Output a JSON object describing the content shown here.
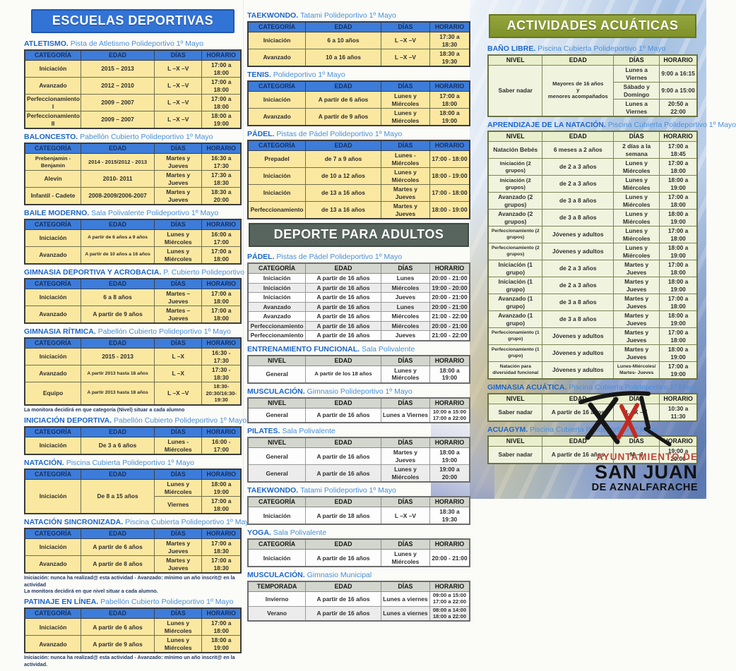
{
  "theme": {
    "blue_banner": "#3273d6",
    "kids_header": "#3d7cd9",
    "kids_row": "#fbe8a0",
    "adults_banner": "#58655e",
    "adults_header": "#d3d6cd",
    "aqua_banner": "#7f9128",
    "aqua_header": "#e9efcc",
    "aqua_row": "#f0f4de",
    "accent_red": "#c0443a"
  },
  "logo": {
    "line1": "AYUNTAMIENTO DE",
    "line2": "SAN JUAN",
    "line3": "DE AZNALFARACHE"
  },
  "columns": [
    {
      "id": "left",
      "blocks": [
        {
          "type": "banner",
          "style": "blue",
          "text": "ESCUELAS DEPORTIVAS"
        },
        {
          "type": "section",
          "style": "kids",
          "name": "ATLETISMO.",
          "loc": "Pista de Atletismo Polideportivo 1º Mayo",
          "headers": [
            "CATEGORÍA",
            "EDAD",
            "DÍAS",
            "HORARIO"
          ],
          "rows": [
            [
              "Iniciación",
              "2015 – 2013",
              "L –X –V",
              "17:00 a 18:00"
            ],
            [
              "Avanzado",
              "2012 – 2010",
              "L –X –V",
              "17:00 a 18:00"
            ],
            [
              "Perfeccionamiento I",
              "2009 – 2007",
              "L –X –V",
              "17:00 a 18:00"
            ],
            [
              "Perfeccionamiento II",
              "2009 – 2007",
              "L –X –V",
              "18:00 a 19:00"
            ]
          ]
        },
        {
          "type": "section",
          "style": "kids",
          "name": "BALONCESTO.",
          "loc": "Pabellón Cubierto Polideportivo 1º Mayo",
          "headers": [
            "CATEGORÍA",
            "EDAD",
            "DÍAS",
            "HORARIO"
          ],
          "rows": [
            [
              "Prebenjamin - Benjamin",
              "2014 - 2015/2012 - 2013",
              "Martes y Jueves",
              "16:30 a 17:30"
            ],
            [
              "Alevín",
              "2010- 2011",
              "Martes y Jueves",
              "17:30 a 18:30"
            ],
            [
              "Infantil - Cadete",
              "2008-2009/2006-2007",
              "Martes y Jueves",
              "18:30 a 20:00"
            ]
          ]
        },
        {
          "type": "section",
          "style": "kids",
          "name": "BAILE MODERNO.",
          "loc": "Sala Polivalente Polideportivo 1º Mayo",
          "headers": [
            "CATEGORÍA",
            "EDAD",
            "DÍAS",
            "HORARIO"
          ],
          "rows": [
            [
              "Iniciación",
              "A partir de 6 años a 9 años",
              "Lunes y Miércoles",
              "16:00 a 17:00"
            ],
            [
              "Avanzado",
              "A partir de 10 años a 16 años",
              "Lunes y Miércoles",
              "17:00 a 18:00"
            ]
          ]
        },
        {
          "type": "section",
          "style": "kids",
          "name": "GIMNASIA DEPORTIVA Y ACROBACIA.",
          "loc": "P. Cubierto Polideportivo 1º Mayo",
          "headers": [
            "CATEGORÍA",
            "EDAD",
            "DÍAS",
            "HORARIO"
          ],
          "rows": [
            [
              "Iniciación",
              "6 a 8 años",
              "Martes – Jueves",
              "17:00 a 18:00"
            ],
            [
              "Avanzado",
              "A partir de 9 años",
              "Martes – Jueves",
              "17:00 a 18:00"
            ]
          ]
        },
        {
          "type": "section",
          "style": "kids",
          "name": "GIMNASIA RÍTMICA.",
          "loc": "Pabellón Cubierto Polideportivo 1º Mayo",
          "headers": [
            "CATEGORÍA",
            "EDAD",
            "DÍAS",
            "HORARIO"
          ],
          "rows": [
            [
              "Iniciación",
              "2015 - 2013",
              "L –X",
              "16:30 - 17:30"
            ],
            [
              "Avanzado",
              "A partir 2013 hasta 18 años",
              "L –X",
              "17:30 - 18:30"
            ],
            [
              "Equipo",
              "A partir 2013 hasta 18 años",
              "L –X –V",
              "18:30-20:30/16:30-19:30"
            ]
          ],
          "note": "La monitora decidirá en que categoría (Nivel) situar a cada alumno"
        },
        {
          "type": "section",
          "style": "kids",
          "name": "INICIACIÓN DEPORTIVA.",
          "loc": "Pabellón Cubierto Polideportivo 1º Mayo",
          "headers": [
            "CATEGORÍA",
            "EDAD",
            "DÍAS",
            "HORARIO"
          ],
          "rows": [
            [
              "Iniciación",
              "De 3 a 6 años",
              "Lunes - Miércoles",
              "16:00 - 17:00"
            ]
          ]
        },
        {
          "type": "section",
          "style": "kids",
          "name": "NATACIÓN.",
          "loc": "Piscina Cubierta Polideportivo 1º Mayo",
          "headers": [
            "CATEGORÍA",
            "EDAD",
            "DÍAS",
            "HORARIO"
          ],
          "rows": [
            [
              {
                "t": "Iniciación",
                "rs": 2
              },
              {
                "t": "De 8 a 15 años",
                "rs": 2
              },
              "Lunes y Miércoles",
              "18:00 a 19:00"
            ],
            [
              "Viernes",
              "17:00 a 18:00"
            ]
          ]
        },
        {
          "type": "section",
          "style": "kids",
          "name": "NATACIÓN SINCRONIZADA.",
          "loc": "Piscina Cubierta Polideportivo 1º Mayo",
          "headers": [
            "CATEGORÍA",
            "EDAD",
            "DÍAS",
            "HORARIO"
          ],
          "rows": [
            [
              "Iniciación",
              "A partir de 6 años",
              "Martes y Jueves",
              "17:00 a 18:30"
            ],
            [
              "Avanzado",
              "A partir de 8 años",
              "Martes y Jueves",
              "17:00 a 18:30"
            ]
          ],
          "note": "Iniciación: nunca ha realizad@ esta actividad - Avanzado: mínimo un año inscrit@ en la actividad\nLa monitora decidirá en que nivel situar a cada alumno."
        },
        {
          "type": "section",
          "style": "kids",
          "name": "PATINAJE EN LÍNEA.",
          "loc": "Pabellón Cubierto Polideportivo 1º Mayo",
          "headers": [
            "CATEGORÍA",
            "EDAD",
            "DÍAS",
            "HORARIO"
          ],
          "rows": [
            [
              "Iniciación",
              "A partir de 6 años",
              "Lunes y Miércoles",
              "17:00 a 18:00"
            ],
            [
              "Avanzado",
              "A partir de 9 años",
              "Lunes y Miércoles",
              "18:00 a 19:00"
            ]
          ],
          "note": "Iniciación: nunca ha realizad@ esta actividad - Avanzado: mínimo un año inscrit@ en la actividad."
        }
      ]
    },
    {
      "id": "middle",
      "blocks": [
        {
          "type": "section",
          "style": "kids",
          "name": "TAEKWONDO.",
          "loc": "Tatami Polideportivo 1º Mayo",
          "headers": [
            "CATEGORÍA",
            "EDAD",
            "DÍAS",
            "HORARIO"
          ],
          "rows": [
            [
              "Iniciación",
              "6 a 10 años",
              "L –X –V",
              "17:30 a 18:30"
            ],
            [
              "Avanzado",
              "10 a 16 años",
              "L –X –V",
              "18:30 a 19:30"
            ]
          ]
        },
        {
          "type": "section",
          "style": "kids",
          "name": "TENIS.",
          "loc": "Polideportivo 1º Mayo",
          "headers": [
            "CATEGORÍA",
            "EDAD",
            "DÍAS",
            "HORARIO"
          ],
          "rows": [
            [
              "Iniciación",
              "A partir de 6 años",
              "Lunes y Miércoles",
              "17:00 a 18:00"
            ],
            [
              "Avanzado",
              "A partir de 9 años",
              "Lunes y Miércoles",
              "18:00 a 19:00"
            ]
          ]
        },
        {
          "type": "section",
          "style": "kids",
          "name": "PÁDEL.",
          "loc": "Pistas de Pádel Polideportivo 1º Mayo",
          "headers": [
            "CATEGORÍA",
            "EDAD",
            "DÍAS",
            "HORARIO"
          ],
          "rows": [
            [
              "Prepadel",
              "de 7 a 9 años",
              "Lunes - Miércoles",
              "17:00 - 18:00"
            ],
            [
              "Iniciación",
              "de 10 a 12 años",
              "Lunes y Miércoles",
              "18:00 - 19:00"
            ],
            [
              "Iniciación",
              "de 13 a 16 años",
              "Martes y Jueves",
              "17:00 - 18:00"
            ],
            [
              "Perfeccionamiento",
              "de 13 a 16 años",
              "Martes y Jueves",
              "18:00 - 19:00"
            ]
          ]
        },
        {
          "type": "banner",
          "style": "gray",
          "text": "DEPORTE PARA ADULTOS"
        },
        {
          "type": "section",
          "style": "adults",
          "name": "PÁDEL.",
          "loc": "Pistas de Pádel Polideportivo 1º Mayo",
          "headers": [
            "CATEGORÍA",
            "EDAD",
            "DÍAS",
            "HORARIO"
          ],
          "rows": [
            [
              "Iniciación",
              "A partir de 16 años",
              "Lunes",
              "20:00 - 21:00"
            ],
            [
              "Iniciación",
              "A partir de 16 años",
              "Miércoles",
              "19:00 - 20:00"
            ],
            [
              "Iniciación",
              "A partir de 16 años",
              "Jueves",
              "20:00 - 21:00"
            ],
            [
              "Avanzado",
              "A partir de 16 años",
              "Lunes",
              "20:00 - 21:00"
            ],
            [
              "Avanzado",
              "A partir de 16 años",
              "Miércoles",
              "21:00 - 22:00"
            ],
            [
              "Perfeccionamiento",
              "A partir de 16 años",
              "Miércoles",
              "20:00 - 21:00"
            ],
            [
              "Perfeccionamiento",
              "A partir de 16 años",
              "Jueves",
              "21:00 - 22:00"
            ]
          ]
        },
        {
          "type": "section",
          "style": "adults",
          "name": "ENTRENAMIENTO FUNCIONAL.",
          "loc": "Sala Polivalente",
          "headers": [
            "NIVEL",
            "EDAD",
            "DÍAS",
            "HORARIO"
          ],
          "rows": [
            [
              "General",
              "A partir de los 18 años",
              "Lunes y Miércoles",
              "18:00 a 19:00"
            ]
          ]
        },
        {
          "type": "section",
          "style": "adults",
          "name": "MUSCULACIÓN.",
          "loc": "Gimnasio Polideportivo 1º Mayo",
          "headers": [
            "NIVEL",
            "EDAD",
            "DÍAS",
            "HORARIO"
          ],
          "rows": [
            [
              "General",
              "A partir de 16 años",
              "Lunes a Viernes",
              "10:00 a 15:00\n17:00 a 22:00"
            ]
          ]
        },
        {
          "type": "section",
          "style": "adults",
          "name": "PILATES.",
          "loc": "Sala Polivalente",
          "headers": [
            "NIVEL",
            "EDAD",
            "DÍAS",
            "HORARIO"
          ],
          "rows": [
            [
              "General",
              "A partir de 16 años",
              "Martes y Jueves",
              "18:00 a 19:00"
            ],
            [
              "General",
              "A partir de 16 años",
              "Lunes y Miércoles",
              "19:00 a 20:00"
            ]
          ]
        },
        {
          "type": "section",
          "style": "adults",
          "name": "TAEKWONDO.",
          "loc": "Tatami Polideportivo 1º Mayo",
          "headers": [
            "CATEGORÍA",
            "EDAD",
            "DÍAS",
            "HORARIO"
          ],
          "rows": [
            [
              "Iniciación",
              "A partir de 18 años",
              "L –X –V",
              "18:30 a 19:30"
            ]
          ]
        },
        {
          "type": "section",
          "style": "adults",
          "name": "YOGA.",
          "loc": "Sala Polivalente",
          "headers": [
            "CATEGORÍA",
            "EDAD",
            "DÍAS",
            "HORARIO"
          ],
          "rows": [
            [
              "Iniciación",
              "A partir de 16 años",
              "Lunes y Miércoles",
              "20:00 - 21:00"
            ]
          ]
        },
        {
          "type": "section",
          "style": "adults",
          "name": "MUSCULACIÓN.",
          "loc": "Gimnasio Municipal",
          "headers": [
            "TEMPORADA",
            "EDAD",
            "DÍAS",
            "HORARIO"
          ],
          "rows": [
            [
              "Invierno",
              "A partir de 16 años",
              "Lunes a viernes",
              "09:00 a 15:00\n17:00 a 22:00"
            ],
            [
              "Verano",
              "A partir de 16 años",
              "Lunes a viernes",
              "08:00 a 14:00\n18:00 a 22:00"
            ]
          ]
        }
      ]
    },
    {
      "id": "right",
      "blocks": [
        {
          "type": "banner",
          "style": "olive",
          "text": "ACTIVIDADES ACUÁTICAS"
        },
        {
          "type": "section",
          "style": "aqua",
          "name": "BAÑO LIBRE.",
          "loc": "Piscina Cubierta Polideportivo 1º Mayo",
          "headers": [
            "NIVEL",
            "EDAD",
            "DÍAS",
            "HORARIO"
          ],
          "rows": [
            [
              {
                "t": "Saber nadar",
                "rs": 3
              },
              {
                "t": "Mayores de 16 años\ny\nmenores acompañados",
                "rs": 3
              },
              "Lunes a Viernes",
              "9:00 a 16:15"
            ],
            [
              "Sábado y Domingo",
              "9:00 a 15:00"
            ],
            [
              "Lunes a Viernes",
              "20:50 a 22:00"
            ]
          ]
        },
        {
          "type": "section",
          "style": "aqua",
          "name": "APRENDIZAJE DE LA NATACIÓN.",
          "loc": "Piscina Cubierta Polideportivo 1º Mayo",
          "headers": [
            "NIVEL",
            "EDAD",
            "DÍAS",
            "HORARIO"
          ],
          "rows": [
            [
              "Natación Bebés",
              "6 meses a 2 años",
              "2 días a la semana",
              "17:00 a 18:45"
            ],
            [
              "Iniciación (2 grupos)",
              "de 2 a 3 años",
              "Lunes y Miércoles",
              "17:00 a 18:00"
            ],
            [
              "Iniciación (2 grupos)",
              "de 2 a 3 años",
              "Lunes y Miércoles",
              "18:00 a 19:00"
            ],
            [
              "Avanzado (2 grupos)",
              "de 3 a 8 años",
              "Lunes y Miércoles",
              "17:00 a 18:00"
            ],
            [
              "Avanzado (2 grupos)",
              "de 3 a 8 años",
              "Lunes y Miércoles",
              "18:00 a 19:00"
            ],
            [
              "Perfeccionamiento (2 grupos)",
              "Jóvenes y adultos",
              "Lunes y Miércoles",
              "17:00 a 18:00"
            ],
            [
              "Perfeccionamiento (2 grupos)",
              "Jóvenes y adultos",
              "Lunes y Miércoles",
              "18:00 a 19:00"
            ],
            [
              "Iniciación (1 grupo)",
              "de 2 a 3 años",
              "Martes y Jueves",
              "17:00 a 18:00"
            ],
            [
              "Iniciación (1 grupo)",
              "de 2 a 3 años",
              "Martes y Jueves",
              "18:00 a 19:00"
            ],
            [
              "Avanzado (1 grupo)",
              "de 3 a 8 años",
              "Martes y Jueves",
              "17:00 a 18:00"
            ],
            [
              "Avanzado (1 grupo)",
              "de 3 a 8 años",
              "Martes y Jueves",
              "18:00 a 19:00"
            ],
            [
              "Perfeccionamiento (1 grupo)",
              "Jóvenes y adultos",
              "Martes y Jueves",
              "17:00 a 18:00"
            ],
            [
              "Perfeccionamiento (1 grupo)",
              "Jóvenes y adultos",
              "Martes y Jueves",
              "18:00 a 19:00"
            ],
            [
              "Natación para diversidad funcional",
              "Jóvenes y adultos",
              "Lunes-Miércoles/ Martes- Jueves",
              "17:00 a 19:00"
            ]
          ]
        },
        {
          "type": "section",
          "style": "aqua",
          "name": "GIMNASIA ACUÁTICA.",
          "loc": "Piscina Cubierta Polideportivo 1º Mayo",
          "headers": [
            "NIVEL",
            "EDAD",
            "DÍAS",
            "HORARIO"
          ],
          "rows": [
            [
              "Saber nadar",
              "A partir de 16 años",
              "L –X –V",
              "10:30 a 11:30"
            ]
          ]
        },
        {
          "type": "section",
          "style": "aqua",
          "name": "ACUAGYM.",
          "loc": "Piscina Cubierta Polideportivo 1º Mayo",
          "headers": [
            "NIVEL",
            "EDAD",
            "DÍAS",
            "HORARIO"
          ],
          "rows": [
            [
              "Saber nadar",
              "A partir de 16 años",
              "M –J",
              "19:00 a 20:00"
            ]
          ]
        }
      ]
    }
  ]
}
